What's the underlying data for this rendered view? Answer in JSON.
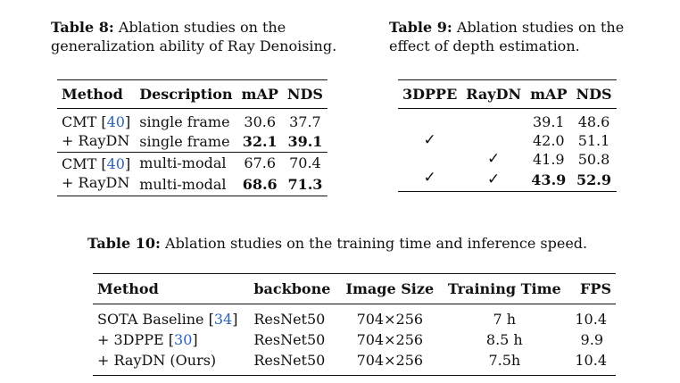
{
  "t8": {
    "label": "Table 8:",
    "caption": " Ablation studies on the generalization ability of Ray Denoising.",
    "headers": [
      "Method",
      "Description",
      "mAP",
      "NDS"
    ],
    "rows": [
      {
        "method": "CMT [",
        "cite": "40",
        "close": "]",
        "desc": "single frame",
        "map": "30.6",
        "nds": "37.7"
      },
      {
        "method": "+ RayDN",
        "desc": "single frame",
        "map": "32.1",
        "nds": "39.1"
      },
      {
        "method": "CMT [",
        "cite": "40",
        "close": "]",
        "desc": "multi-modal",
        "map": "67.6",
        "nds": "70.4"
      },
      {
        "method": "+ RayDN",
        "desc": "multi-modal",
        "map": "68.6",
        "nds": "71.3"
      }
    ]
  },
  "t9": {
    "label": "Table 9:",
    "caption": " Ablation studies on the effect of depth estimation.",
    "headers": [
      "3DPPE",
      "RayDN",
      "mAP",
      "NDS"
    ],
    "check": "✓",
    "rows": [
      {
        "map": "39.1",
        "nds": "48.6"
      },
      {
        "map": "42.0",
        "nds": "51.1"
      },
      {
        "map": "41.9",
        "nds": "50.8"
      },
      {
        "map": "43.9",
        "nds": "52.9"
      }
    ]
  },
  "t10": {
    "label": "Table 10:",
    "caption": " Ablation studies on the training time and inference speed.",
    "headers": [
      "Method",
      "backbone",
      "Image Size",
      "Training Time",
      "FPS"
    ],
    "rows": [
      {
        "method": "SOTA Baseline [",
        "cite": "34",
        "close": "]",
        "backbone": "ResNet50",
        "size": "704×256",
        "time": "7 h",
        "fps": "10.4"
      },
      {
        "method": "+ 3DPPE [",
        "cite": "30",
        "close": "]",
        "backbone": "ResNet50",
        "size": "704×256",
        "time": "8.5 h",
        "fps": "9.9"
      },
      {
        "method": "+ RayDN (Ours)",
        "backbone": "ResNet50",
        "size": "704×256",
        "time": "7.5h",
        "fps": "10.4"
      }
    ]
  }
}
